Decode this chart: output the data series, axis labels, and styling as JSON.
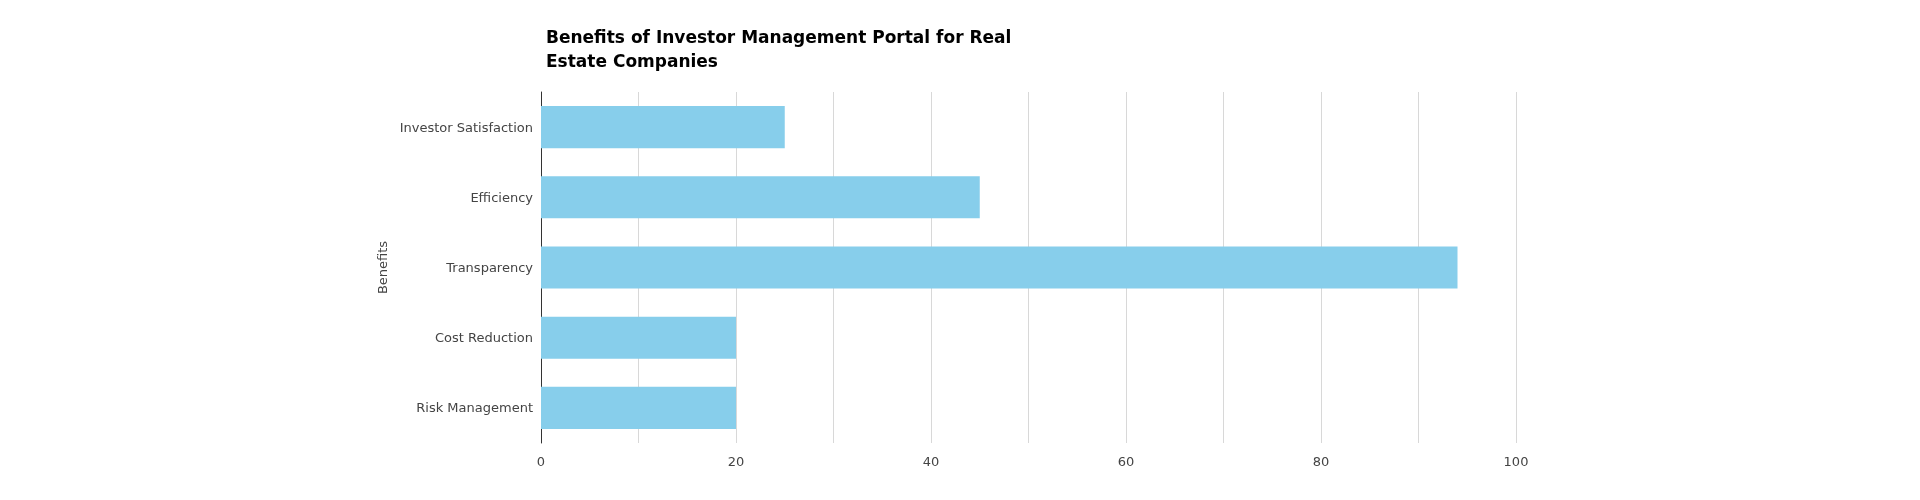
{
  "chart_data": {
    "type": "bar",
    "orientation": "horizontal",
    "title": "Benefits of Investor Management Portal for Real Estate Companies",
    "ylabel": "Benefits",
    "categories": [
      "Investor Satisfaction",
      "Efficiency",
      "Transparency",
      "Cost Reduction",
      "Risk Management"
    ],
    "values": [
      25,
      45,
      94,
      20,
      20
    ],
    "color": "#87ceeb",
    "xlim": [
      0,
      100
    ],
    "xticks": [
      0,
      {
        "value": 10,
        "label": null
      },
      20,
      {
        "value": 30,
        "label": null
      },
      40,
      {
        "value": 50,
        "label": null
      },
      60,
      {
        "value": 70,
        "label": null
      },
      80,
      {
        "value": 90,
        "label": null
      },
      100
    ],
    "grid": "x"
  }
}
